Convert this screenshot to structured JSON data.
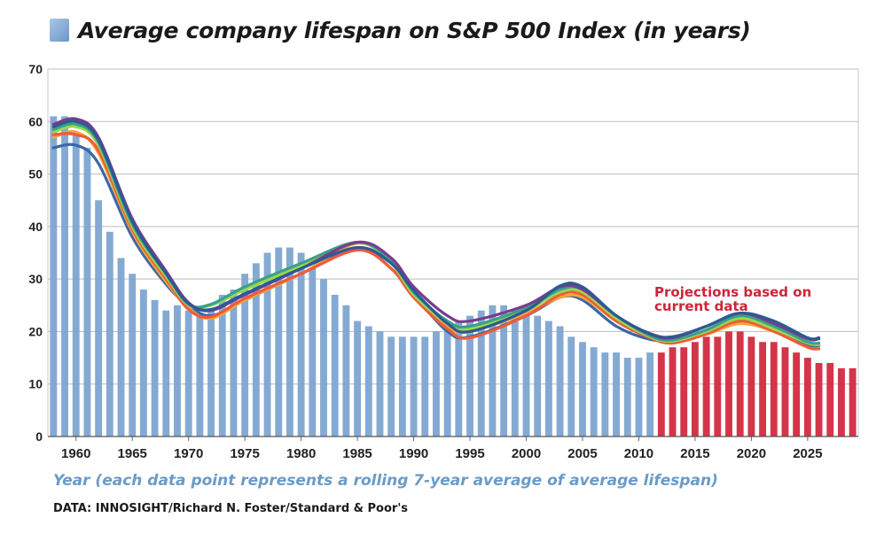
{
  "chart_data": {
    "type": "bar",
    "title": "Average company lifespan on S&P 500 Index (in years)",
    "xlabel": "Year (each data point represents a rolling 7-year average of average lifespan)",
    "ylabel": "",
    "source": "DATA: INNOSIGHT/Richard N. Foster/Standard & Poor's",
    "annotation": "Projections based on current data",
    "ylim": [
      0,
      70
    ],
    "xlim": [
      1958,
      2030
    ],
    "yticks": [
      0,
      10,
      20,
      30,
      40,
      50,
      60,
      70
    ],
    "xticks": [
      "1960",
      "1965",
      "1970",
      "1975",
      "1980",
      "1985",
      "1990",
      "1995",
      "2000",
      "2005",
      "2010",
      "2015",
      "2020",
      "2025"
    ],
    "historical": {
      "name": "Average company lifespan",
      "color": "#7aa3cf",
      "years": [
        1958,
        1959,
        1960,
        1961,
        1962,
        1963,
        1964,
        1965,
        1966,
        1967,
        1968,
        1969,
        1970,
        1971,
        1972,
        1973,
        1974,
        1975,
        1976,
        1977,
        1978,
        1979,
        1980,
        1981,
        1982,
        1983,
        1984,
        1985,
        1986,
        1987,
        1988,
        1989,
        1990,
        1991,
        1992,
        1993,
        1994,
        1995,
        1996,
        1997,
        1998,
        1999,
        2000,
        2001,
        2002,
        2003,
        2004,
        2005,
        2006,
        2007,
        2008,
        2009,
        2010,
        2011
      ],
      "values": [
        61,
        61,
        58,
        55,
        45,
        39,
        34,
        31,
        28,
        26,
        24,
        25,
        24,
        23,
        24,
        27,
        28,
        31,
        33,
        35,
        36,
        36,
        35,
        32,
        30,
        27,
        25,
        22,
        21,
        20,
        19,
        19,
        19,
        19,
        20,
        20,
        22,
        23,
        24,
        25,
        25,
        24,
        24,
        23,
        22,
        21,
        19,
        18,
        17,
        16,
        16,
        15,
        15,
        16
      ]
    },
    "projection": {
      "name": "Projections based on current data",
      "color": "#d0243a",
      "years": [
        2012,
        2013,
        2014,
        2015,
        2016,
        2017,
        2018,
        2019,
        2020,
        2021,
        2022,
        2023,
        2024,
        2025,
        2026,
        2027,
        2028,
        2029
      ],
      "values": [
        16,
        17,
        17,
        18,
        19,
        19,
        20,
        20,
        19,
        18,
        18,
        17,
        16,
        15,
        14,
        14,
        13,
        13
      ]
    },
    "trend_lines": {
      "description": "Multiple smoothed fitted curves overlaid on the bars",
      "series": [
        {
          "name": "trend-1",
          "color": "#3b67a8",
          "points": [
            [
              1958,
              55
            ],
            [
              1960,
              55.5
            ],
            [
              1962,
              52
            ],
            [
              1965,
              38
            ],
            [
              1968,
              29
            ],
            [
              1970,
              25
            ],
            [
              1972,
              23
            ],
            [
              1975,
              26
            ],
            [
              1980,
              31
            ],
            [
              1985,
              36
            ],
            [
              1988,
              32
            ],
            [
              1990,
              27
            ],
            [
              1993,
              20
            ],
            [
              1995,
              19
            ],
            [
              2000,
              23
            ],
            [
              2003,
              26.5
            ],
            [
              2005,
              26
            ],
            [
              2008,
              21
            ],
            [
              2011,
              18.5
            ],
            [
              2013,
              18.5
            ],
            [
              2016,
              20
            ],
            [
              2019,
              22.5
            ],
            [
              2022,
              20.5
            ],
            [
              2025,
              17.5
            ],
            [
              2026,
              17.3
            ]
          ]
        },
        {
          "name": "trend-2",
          "color": "#f4a73b",
          "points": [
            [
              1958,
              57
            ],
            [
              1960,
              58
            ],
            [
              1962,
              54
            ],
            [
              1965,
              39
            ],
            [
              1968,
              29.5
            ],
            [
              1970,
              24.5
            ],
            [
              1972,
              22.5
            ],
            [
              1975,
              26
            ],
            [
              1980,
              31
            ],
            [
              1985,
              36.8
            ],
            [
              1988,
              33
            ],
            [
              1990,
              27.5
            ],
            [
              1993,
              21
            ],
            [
              1995,
              20
            ],
            [
              2000,
              23.5
            ],
            [
              2003,
              26.5
            ],
            [
              2005,
              26.5
            ],
            [
              2008,
              22
            ],
            [
              2011,
              19
            ],
            [
              2013,
              18.5
            ],
            [
              2016,
              19.5
            ],
            [
              2019,
              21.5
            ],
            [
              2022,
              20
            ],
            [
              2025,
              17
            ],
            [
              2026,
              16.8
            ]
          ]
        },
        {
          "name": "trend-3",
          "color": "#f05a3a",
          "points": [
            [
              1958,
              57.5
            ],
            [
              1960,
              57.5
            ],
            [
              1962,
              54.5
            ],
            [
              1965,
              39.5
            ],
            [
              1968,
              30
            ],
            [
              1970,
              24.2
            ],
            [
              1972,
              22.8
            ],
            [
              1975,
              26.3
            ],
            [
              1980,
              31
            ],
            [
              1985,
              35.5
            ],
            [
              1988,
              32
            ],
            [
              1990,
              26.5
            ],
            [
              1993,
              20.5
            ],
            [
              1995,
              18.8
            ],
            [
              2000,
              23
            ],
            [
              2003,
              27
            ],
            [
              2005,
              27
            ],
            [
              2008,
              22
            ],
            [
              2011,
              18.8
            ],
            [
              2013,
              17.8
            ],
            [
              2016,
              19.5
            ],
            [
              2019,
              22
            ],
            [
              2022,
              20
            ],
            [
              2025,
              17
            ],
            [
              2026,
              16.7
            ]
          ]
        },
        {
          "name": "trend-4",
          "color": "#9bd84a",
          "points": [
            [
              1958,
              58
            ],
            [
              1960,
              59
            ],
            [
              1962,
              55.5
            ],
            [
              1965,
              40
            ],
            [
              1968,
              30.5
            ],
            [
              1970,
              25
            ],
            [
              1972,
              25
            ],
            [
              1975,
              28
            ],
            [
              1980,
              32.5
            ],
            [
              1985,
              37
            ],
            [
              1988,
              33
            ],
            [
              1990,
              27
            ],
            [
              1993,
              21.5
            ],
            [
              1995,
              20.5
            ],
            [
              2000,
              24
            ],
            [
              2003,
              27.5
            ],
            [
              2005,
              27.5
            ],
            [
              2008,
              22.5
            ],
            [
              2011,
              19
            ],
            [
              2013,
              18.2
            ],
            [
              2016,
              20
            ],
            [
              2019,
              22.5
            ],
            [
              2022,
              20.5
            ],
            [
              2025,
              17.8
            ],
            [
              2026,
              17.5
            ]
          ]
        },
        {
          "name": "trend-5",
          "color": "#3aa08a",
          "points": [
            [
              1958,
              58.5
            ],
            [
              1960,
              59.5
            ],
            [
              1962,
              56
            ],
            [
              1965,
              40.5
            ],
            [
              1968,
              31
            ],
            [
              1970,
              25.2
            ],
            [
              1972,
              25.2
            ],
            [
              1975,
              28.5
            ],
            [
              1980,
              33
            ],
            [
              1985,
              37
            ],
            [
              1988,
              33.5
            ],
            [
              1990,
              27.5
            ],
            [
              1993,
              22
            ],
            [
              1995,
              21
            ],
            [
              2000,
              24.5
            ],
            [
              2003,
              28
            ],
            [
              2005,
              28
            ],
            [
              2008,
              23
            ],
            [
              2011,
              19.2
            ],
            [
              2013,
              18.4
            ],
            [
              2016,
              20.3
            ],
            [
              2019,
              23
            ],
            [
              2022,
              21
            ],
            [
              2025,
              18
            ],
            [
              2026,
              17.8
            ]
          ]
        },
        {
          "name": "trend-6",
          "color": "#7a3c8c",
          "points": [
            [
              1958,
              59.5
            ],
            [
              1960,
              60.5
            ],
            [
              1962,
              57
            ],
            [
              1965,
              41.5
            ],
            [
              1968,
              31.5
            ],
            [
              1970,
              25.5
            ],
            [
              1972,
              24
            ],
            [
              1975,
              27
            ],
            [
              1980,
              32
            ],
            [
              1985,
              37
            ],
            [
              1988,
              34
            ],
            [
              1990,
              28.5
            ],
            [
              1993,
              23
            ],
            [
              1995,
              22
            ],
            [
              2000,
              25
            ],
            [
              2003,
              28.5
            ],
            [
              2005,
              28
            ],
            [
              2008,
              23
            ],
            [
              2011,
              19.5
            ],
            [
              2013,
              18.8
            ],
            [
              2016,
              21
            ],
            [
              2019,
              23.5
            ],
            [
              2022,
              21.5
            ],
            [
              2025,
              18.6
            ],
            [
              2026,
              18.6
            ]
          ]
        },
        {
          "name": "trend-7",
          "color": "#2c5a94",
          "points": [
            [
              1958,
              59
            ],
            [
              1960,
              60
            ],
            [
              1962,
              56.5
            ],
            [
              1965,
              41
            ],
            [
              1968,
              31
            ],
            [
              1970,
              25.3
            ],
            [
              1972,
              24.2
            ],
            [
              1975,
              27.2
            ],
            [
              1980,
              32
            ],
            [
              1985,
              36
            ],
            [
              1988,
              33
            ],
            [
              1990,
              27.8
            ],
            [
              1993,
              21.5
            ],
            [
              1995,
              20
            ],
            [
              2000,
              24
            ],
            [
              2003,
              28.7
            ],
            [
              2005,
              28.5
            ],
            [
              2008,
              23
            ],
            [
              2011,
              19.6
            ],
            [
              2013,
              19
            ],
            [
              2016,
              21
            ],
            [
              2019,
              23.5
            ],
            [
              2022,
              22
            ],
            [
              2025,
              18.8
            ],
            [
              2026,
              18.8
            ]
          ]
        }
      ]
    }
  }
}
